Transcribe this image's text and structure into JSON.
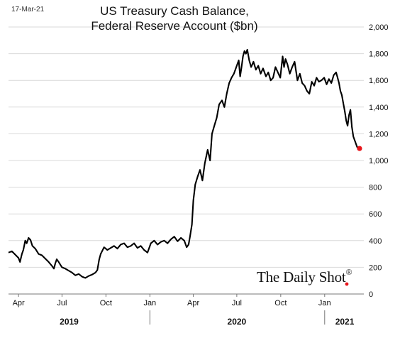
{
  "date_stamp": "17-Mar-21",
  "watermark": {
    "text": "The Daily Shot",
    "mark": "®"
  },
  "chart_data": {
    "type": "line",
    "title": "US Treasury Cash Balance,",
    "subtitle": "Federal Reserve Account ($bn)",
    "xlabel": "",
    "ylabel": "",
    "ylim": [
      0,
      2000
    ],
    "y_ticks": [
      "0",
      "200",
      "400",
      "600",
      "800",
      "1,000",
      "1,200",
      "1,400",
      "1,600",
      "1,800",
      "2,000"
    ],
    "y_tick_values": [
      0,
      200,
      400,
      600,
      800,
      1000,
      1200,
      1400,
      1600,
      1800,
      2000
    ],
    "x_range": [
      "2019-03-11",
      "2021-03-24"
    ],
    "month_ticks": [
      {
        "label": "Apr",
        "date": "2019-04-01"
      },
      {
        "label": "Jul",
        "date": "2019-07-01"
      },
      {
        "label": "Oct",
        "date": "2019-10-01"
      },
      {
        "label": "Jan",
        "date": "2020-01-01"
      },
      {
        "label": "Apr",
        "date": "2020-04-01"
      },
      {
        "label": "Jul",
        "date": "2020-07-01"
      },
      {
        "label": "Oct",
        "date": "2020-10-01"
      },
      {
        "label": "Jan",
        "date": "2021-01-01"
      }
    ],
    "year_labels": [
      {
        "label": "2019",
        "center": "2019-07-16"
      },
      {
        "label": "2020",
        "center": "2020-07-01"
      },
      {
        "label": "2021",
        "center": "2021-02-12"
      }
    ],
    "year_dividers": [
      "2020-01-01",
      "2021-01-01"
    ],
    "gridlines": true,
    "line_color": "#000000",
    "marker_color": "#e8151b",
    "series": [
      {
        "values": [
          [
            "2019-03-11",
            310
          ],
          [
            "2019-03-18",
            320
          ],
          [
            "2019-03-25",
            295
          ],
          [
            "2019-04-01",
            270
          ],
          [
            "2019-04-04",
            240
          ],
          [
            "2019-04-08",
            300
          ],
          [
            "2019-04-11",
            330
          ],
          [
            "2019-04-15",
            400
          ],
          [
            "2019-04-18",
            380
          ],
          [
            "2019-04-22",
            420
          ],
          [
            "2019-04-26",
            405
          ],
          [
            "2019-04-30",
            360
          ],
          [
            "2019-05-06",
            340
          ],
          [
            "2019-05-13",
            300
          ],
          [
            "2019-05-20",
            290
          ],
          [
            "2019-05-27",
            265
          ],
          [
            "2019-06-03",
            240
          ],
          [
            "2019-06-10",
            210
          ],
          [
            "2019-06-14",
            190
          ],
          [
            "2019-06-17",
            230
          ],
          [
            "2019-06-20",
            260
          ],
          [
            "2019-06-24",
            240
          ],
          [
            "2019-07-01",
            200
          ],
          [
            "2019-07-08",
            190
          ],
          [
            "2019-07-15",
            175
          ],
          [
            "2019-07-22",
            160
          ],
          [
            "2019-07-29",
            140
          ],
          [
            "2019-08-05",
            150
          ],
          [
            "2019-08-12",
            130
          ],
          [
            "2019-08-19",
            120
          ],
          [
            "2019-08-26",
            135
          ],
          [
            "2019-09-02",
            145
          ],
          [
            "2019-09-09",
            160
          ],
          [
            "2019-09-13",
            180
          ],
          [
            "2019-09-17",
            260
          ],
          [
            "2019-09-20",
            300
          ],
          [
            "2019-09-27",
            350
          ],
          [
            "2019-10-04",
            330
          ],
          [
            "2019-10-11",
            345
          ],
          [
            "2019-10-18",
            360
          ],
          [
            "2019-10-25",
            340
          ],
          [
            "2019-11-01",
            370
          ],
          [
            "2019-11-08",
            380
          ],
          [
            "2019-11-15",
            350
          ],
          [
            "2019-11-22",
            360
          ],
          [
            "2019-11-29",
            380
          ],
          [
            "2019-12-06",
            345
          ],
          [
            "2019-12-13",
            360
          ],
          [
            "2019-12-20",
            330
          ],
          [
            "2019-12-27",
            310
          ],
          [
            "2020-01-03",
            380
          ],
          [
            "2020-01-10",
            400
          ],
          [
            "2020-01-17",
            370
          ],
          [
            "2020-01-24",
            390
          ],
          [
            "2020-01-31",
            400
          ],
          [
            "2020-02-07",
            380
          ],
          [
            "2020-02-14",
            410
          ],
          [
            "2020-02-21",
            430
          ],
          [
            "2020-02-28",
            395
          ],
          [
            "2020-03-06",
            420
          ],
          [
            "2020-03-13",
            400
          ],
          [
            "2020-03-18",
            350
          ],
          [
            "2020-03-22",
            370
          ],
          [
            "2020-03-25",
            430
          ],
          [
            "2020-03-29",
            520
          ],
          [
            "2020-04-01",
            700
          ],
          [
            "2020-04-05",
            820
          ],
          [
            "2020-04-10",
            880
          ],
          [
            "2020-04-15",
            930
          ],
          [
            "2020-04-20",
            850
          ],
          [
            "2020-04-25",
            980
          ],
          [
            "2020-05-01",
            1080
          ],
          [
            "2020-05-06",
            1000
          ],
          [
            "2020-05-10",
            1200
          ],
          [
            "2020-05-15",
            1260
          ],
          [
            "2020-05-20",
            1320
          ],
          [
            "2020-05-25",
            1420
          ],
          [
            "2020-05-31",
            1450
          ],
          [
            "2020-06-05",
            1400
          ],
          [
            "2020-06-10",
            1500
          ],
          [
            "2020-06-15",
            1580
          ],
          [
            "2020-06-20",
            1620
          ],
          [
            "2020-06-25",
            1650
          ],
          [
            "2020-06-30",
            1700
          ],
          [
            "2020-07-05",
            1750
          ],
          [
            "2020-07-08",
            1630
          ],
          [
            "2020-07-11",
            1700
          ],
          [
            "2020-07-14",
            1780
          ],
          [
            "2020-07-17",
            1820
          ],
          [
            "2020-07-20",
            1800
          ],
          [
            "2020-07-23",
            1830
          ],
          [
            "2020-07-27",
            1750
          ],
          [
            "2020-07-31",
            1700
          ],
          [
            "2020-08-05",
            1740
          ],
          [
            "2020-08-10",
            1680
          ],
          [
            "2020-08-15",
            1710
          ],
          [
            "2020-08-20",
            1650
          ],
          [
            "2020-08-25",
            1690
          ],
          [
            "2020-08-31",
            1630
          ],
          [
            "2020-09-05",
            1660
          ],
          [
            "2020-09-10",
            1600
          ],
          [
            "2020-09-15",
            1620
          ],
          [
            "2020-09-20",
            1700
          ],
          [
            "2020-09-25",
            1660
          ],
          [
            "2020-09-30",
            1620
          ],
          [
            "2020-10-05",
            1780
          ],
          [
            "2020-10-08",
            1700
          ],
          [
            "2020-10-11",
            1760
          ],
          [
            "2020-10-15",
            1720
          ],
          [
            "2020-10-20",
            1650
          ],
          [
            "2020-10-25",
            1700
          ],
          [
            "2020-10-30",
            1740
          ],
          [
            "2020-11-05",
            1600
          ],
          [
            "2020-11-10",
            1650
          ],
          [
            "2020-11-15",
            1580
          ],
          [
            "2020-11-20",
            1560
          ],
          [
            "2020-11-25",
            1520
          ],
          [
            "2020-11-30",
            1500
          ],
          [
            "2020-12-05",
            1590
          ],
          [
            "2020-12-10",
            1560
          ],
          [
            "2020-12-15",
            1620
          ],
          [
            "2020-12-20",
            1590
          ],
          [
            "2020-12-25",
            1600
          ],
          [
            "2020-12-31",
            1620
          ],
          [
            "2021-01-05",
            1570
          ],
          [
            "2021-01-10",
            1610
          ],
          [
            "2021-01-15",
            1580
          ],
          [
            "2021-01-20",
            1640
          ],
          [
            "2021-01-25",
            1660
          ],
          [
            "2021-01-28",
            1620
          ],
          [
            "2021-01-31",
            1580
          ],
          [
            "2021-02-03",
            1520
          ],
          [
            "2021-02-06",
            1490
          ],
          [
            "2021-02-09",
            1430
          ],
          [
            "2021-02-12",
            1370
          ],
          [
            "2021-02-15",
            1300
          ],
          [
            "2021-02-18",
            1260
          ],
          [
            "2021-02-21",
            1340
          ],
          [
            "2021-02-24",
            1380
          ],
          [
            "2021-02-27",
            1250
          ],
          [
            "2021-03-02",
            1180
          ],
          [
            "2021-03-05",
            1150
          ],
          [
            "2021-03-10",
            1100
          ],
          [
            "2021-03-15",
            1090
          ]
        ]
      }
    ]
  }
}
